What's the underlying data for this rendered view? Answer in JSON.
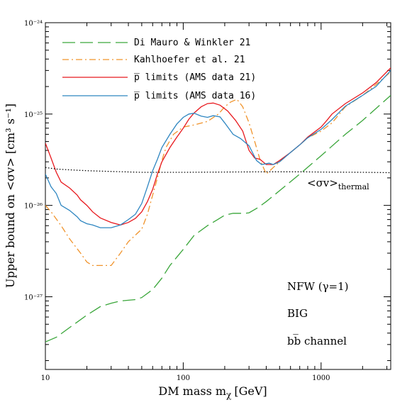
{
  "chart_data": {
    "type": "line",
    "xlabel": "DM mass m",
    "xlabel_sub": "χ",
    "xlabel_unit": "[GeV]",
    "ylabel": "Upper bound on <σv> [cm³ s⁻¹]",
    "x_scale": "log",
    "y_scale": "log",
    "xlim": [
      10,
      3200
    ],
    "ylim": [
      1.6e-28,
      1e-24
    ],
    "x_ticks": [
      {
        "value": 10,
        "label": "10"
      },
      {
        "value": 100,
        "label": "100"
      },
      {
        "value": 1000,
        "label": "1000"
      }
    ],
    "y_ticks": [
      {
        "value": 1e-24,
        "label": "10⁻²⁴"
      },
      {
        "value": 1e-25,
        "label": "10⁻²⁵"
      },
      {
        "value": 1e-26,
        "label": "10⁻²⁶"
      },
      {
        "value": 1e-27,
        "label": "10⁻²⁷"
      }
    ],
    "legend_position": "top-left",
    "series": [
      {
        "name": "Di Mauro & Winkler 21",
        "color": "#3aa63a",
        "dash": "long-dash",
        "points": [
          [
            10,
            3.2e-28
          ],
          [
            12,
            3.6e-28
          ],
          [
            15,
            4.6e-28
          ],
          [
            20,
            6.3e-28
          ],
          [
            25,
            7.8e-28
          ],
          [
            30,
            8.5e-28
          ],
          [
            35,
            9e-28
          ],
          [
            45,
            9.3e-28
          ],
          [
            50,
            9.8e-28
          ],
          [
            60,
            1.2e-27
          ],
          [
            70,
            1.6e-27
          ],
          [
            80,
            2.2e-27
          ],
          [
            100,
            3.3e-27
          ],
          [
            120,
            4.7e-27
          ],
          [
            150,
            6e-27
          ],
          [
            175,
            6.9e-27
          ],
          [
            200,
            7.8e-27
          ],
          [
            230,
            8.2e-27
          ],
          [
            280,
            8.2e-27
          ],
          [
            300,
            8.3e-27
          ],
          [
            350,
            9.5e-27
          ],
          [
            400,
            1.1e-26
          ],
          [
            500,
            1.45e-26
          ],
          [
            700,
            2.2e-26
          ],
          [
            1000,
            3.5e-26
          ],
          [
            1500,
            6e-26
          ],
          [
            2000,
            8.5e-26
          ],
          [
            3200,
            1.6e-25
          ]
        ]
      },
      {
        "name": "Kahlhoefer et al. 21",
        "color": "#f0932b",
        "dash": "dash-dot",
        "points": [
          [
            10,
            1e-26
          ],
          [
            11,
            8.5e-27
          ],
          [
            13,
            6e-27
          ],
          [
            15,
            4.3e-27
          ],
          [
            18,
            3e-27
          ],
          [
            20,
            2.4e-27
          ],
          [
            22,
            2.2e-27
          ],
          [
            25,
            2.2e-27
          ],
          [
            30,
            2.2e-27
          ],
          [
            35,
            3e-27
          ],
          [
            40,
            4e-27
          ],
          [
            50,
            5.5e-27
          ],
          [
            55,
            8e-27
          ],
          [
            60,
            1.3e-26
          ],
          [
            65,
            2e-26
          ],
          [
            70,
            3.1e-26
          ],
          [
            75,
            4.3e-26
          ],
          [
            85,
            6e-26
          ],
          [
            100,
            7.2e-26
          ],
          [
            120,
            7.6e-26
          ],
          [
            150,
            8.3e-26
          ],
          [
            180,
            1e-25
          ],
          [
            200,
            1.2e-25
          ],
          [
            220,
            1.35e-25
          ],
          [
            245,
            1.45e-25
          ],
          [
            270,
            1.2e-25
          ],
          [
            300,
            8e-26
          ],
          [
            330,
            5e-26
          ],
          [
            360,
            3.2e-26
          ],
          [
            400,
            2.2e-26
          ],
          [
            450,
            2.6e-26
          ],
          [
            500,
            3e-26
          ],
          [
            600,
            3.8e-26
          ],
          [
            700,
            4.6e-26
          ],
          [
            800,
            5.5e-26
          ],
          [
            1000,
            6.5e-26
          ],
          [
            1200,
            8e-26
          ],
          [
            1500,
            1.2e-25
          ],
          [
            2000,
            1.6e-25
          ],
          [
            2500,
            2.1e-25
          ],
          [
            3200,
            2.9e-25
          ]
        ]
      },
      {
        "name": "p̅ limits (AMS data 21)",
        "color": "#e8191e",
        "dash": "solid",
        "points": [
          [
            10,
            4.8e-26
          ],
          [
            11,
            3.3e-26
          ],
          [
            12,
            2.3e-26
          ],
          [
            13,
            1.8e-26
          ],
          [
            15,
            1.55e-26
          ],
          [
            17,
            1.3e-26
          ],
          [
            18,
            1.15e-26
          ],
          [
            20,
            1e-26
          ],
          [
            22,
            8.5e-27
          ],
          [
            25,
            7.3e-27
          ],
          [
            30,
            6.5e-27
          ],
          [
            35,
            6.1e-27
          ],
          [
            40,
            6.5e-27
          ],
          [
            45,
            7.2e-27
          ],
          [
            50,
            8.5e-27
          ],
          [
            55,
            1.1e-26
          ],
          [
            60,
            1.5e-26
          ],
          [
            65,
            2.2e-26
          ],
          [
            70,
            3e-26
          ],
          [
            80,
            4.3e-26
          ],
          [
            90,
            5.6e-26
          ],
          [
            100,
            7e-26
          ],
          [
            110,
            8.8e-26
          ],
          [
            120,
            1.03e-25
          ],
          [
            135,
            1.2e-25
          ],
          [
            150,
            1.3e-25
          ],
          [
            165,
            1.32e-25
          ],
          [
            185,
            1.25e-25
          ],
          [
            210,
            1.08e-25
          ],
          [
            240,
            8.5e-26
          ],
          [
            270,
            6.5e-26
          ],
          [
            300,
            4e-26
          ],
          [
            330,
            3.3e-26
          ],
          [
            360,
            3.2e-26
          ],
          [
            400,
            2.8e-26
          ],
          [
            450,
            2.8e-26
          ],
          [
            500,
            3.1e-26
          ],
          [
            600,
            3.8e-26
          ],
          [
            700,
            4.6e-26
          ],
          [
            800,
            5.6e-26
          ],
          [
            1000,
            7.2e-26
          ],
          [
            1100,
            8.5e-26
          ],
          [
            1200,
            1e-25
          ],
          [
            1500,
            1.3e-25
          ],
          [
            2000,
            1.7e-25
          ],
          [
            2500,
            2.2e-25
          ],
          [
            3200,
            3.2e-25
          ]
        ]
      },
      {
        "name": "p̅ limits (AMS data 16)",
        "color": "#2e86c1",
        "dash": "solid",
        "points": [
          [
            10,
            2.2e-26
          ],
          [
            11,
            1.6e-26
          ],
          [
            12,
            1.35e-26
          ],
          [
            13,
            1e-26
          ],
          [
            15,
            8.8e-27
          ],
          [
            17,
            7.5e-27
          ],
          [
            18,
            6.8e-27
          ],
          [
            20,
            6.3e-27
          ],
          [
            22,
            6.1e-27
          ],
          [
            25,
            5.7e-27
          ],
          [
            30,
            5.7e-27
          ],
          [
            35,
            6.1e-27
          ],
          [
            40,
            7e-27
          ],
          [
            45,
            8e-27
          ],
          [
            50,
            1.05e-26
          ],
          [
            55,
            1.6e-26
          ],
          [
            60,
            2.4e-26
          ],
          [
            65,
            3.2e-26
          ],
          [
            70,
            4.3e-26
          ],
          [
            80,
            6e-26
          ],
          [
            90,
            7.8e-26
          ],
          [
            100,
            9.2e-26
          ],
          [
            110,
            1e-25
          ],
          [
            120,
            1.02e-25
          ],
          [
            135,
            9.5e-26
          ],
          [
            150,
            9.2e-26
          ],
          [
            165,
            9.6e-26
          ],
          [
            185,
            9.3e-26
          ],
          [
            200,
            8e-26
          ],
          [
            230,
            6e-26
          ],
          [
            260,
            5.4e-26
          ],
          [
            300,
            4.5e-26
          ],
          [
            340,
            3.1e-26
          ],
          [
            370,
            2.8e-26
          ],
          [
            420,
            2.9e-26
          ],
          [
            450,
            2.8e-26
          ],
          [
            500,
            3e-26
          ],
          [
            600,
            3.8e-26
          ],
          [
            700,
            4.6e-26
          ],
          [
            800,
            5.5e-26
          ],
          [
            1000,
            6.8e-26
          ],
          [
            1200,
            8.7e-26
          ],
          [
            1500,
            1.22e-25
          ],
          [
            2000,
            1.6e-25
          ],
          [
            2500,
            2e-25
          ],
          [
            3200,
            3e-25
          ]
        ]
      },
      {
        "name": "thermal",
        "color": "#000000",
        "dash": "dotted",
        "points": [
          [
            10,
            2.6e-26
          ],
          [
            12,
            2.5e-26
          ],
          [
            15,
            2.45e-26
          ],
          [
            20,
            2.4e-26
          ],
          [
            30,
            2.35e-26
          ],
          [
            50,
            2.3e-26
          ],
          [
            100,
            2.3e-26
          ],
          [
            200,
            2.32e-26
          ],
          [
            400,
            2.33e-26
          ],
          [
            700,
            2.33e-26
          ],
          [
            1000,
            2.32e-26
          ],
          [
            2000,
            2.3e-26
          ],
          [
            3200,
            2.28e-26
          ]
        ]
      }
    ],
    "thermal_label": {
      "main": "<σv>",
      "sub": "thermal"
    },
    "annotations": [
      "NFW (γ=1)",
      "BIG",
      "bb̅ channel"
    ]
  }
}
